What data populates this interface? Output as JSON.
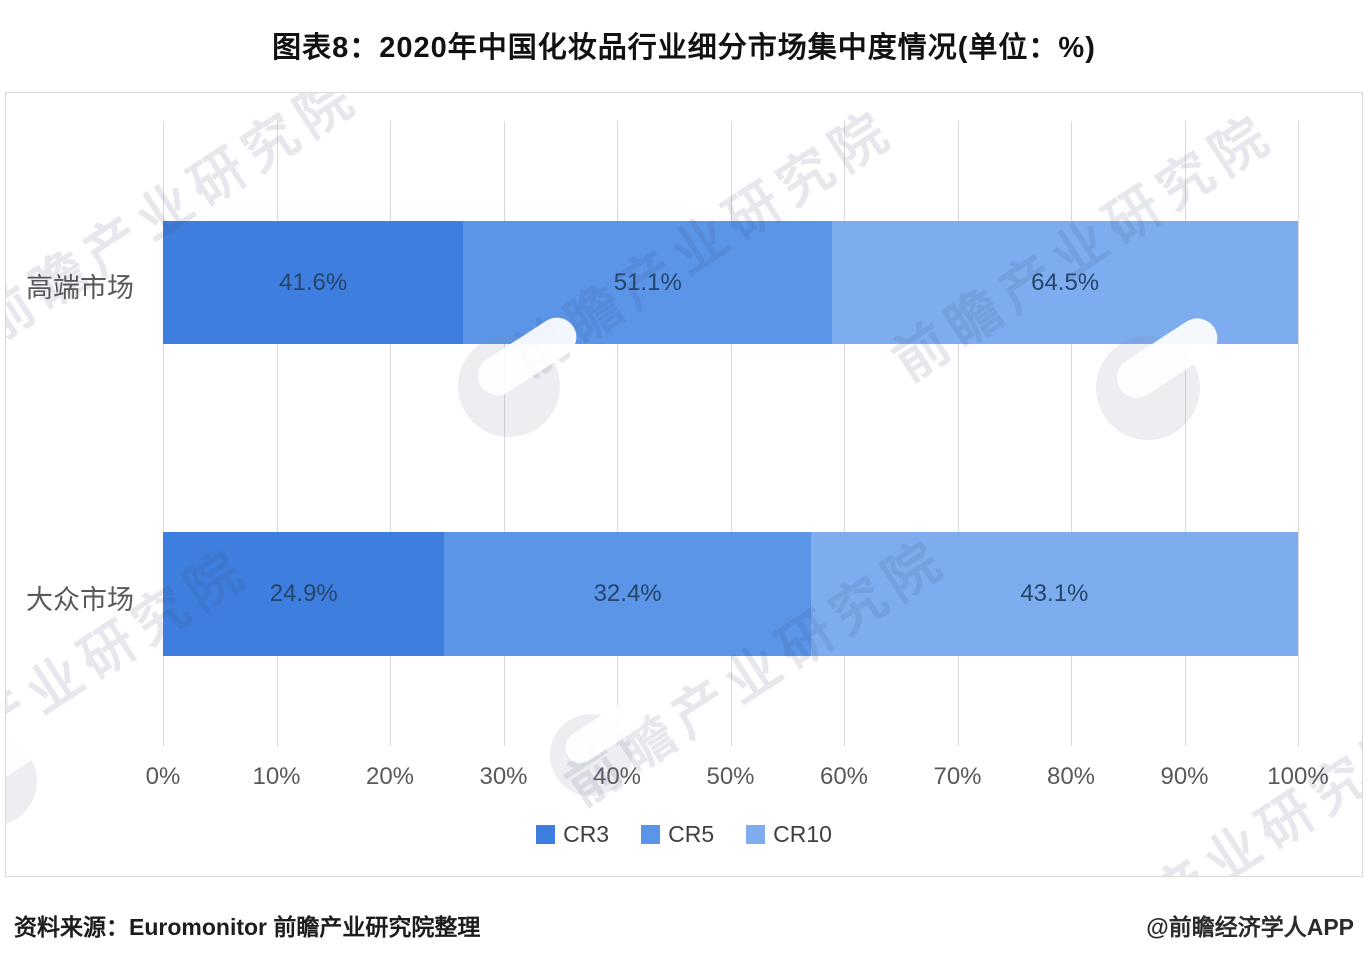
{
  "title": "图表8：2020年中国化妆品行业细分市场集中度情况(单位：%)",
  "watermark": {
    "text": "前瞻产业研究院"
  },
  "footer": {
    "source": "资料来源：Euromonitor 前瞻产业研究院整理",
    "credit": "@前瞻经济学人APP"
  },
  "colors": {
    "cr3": "#3E7EDE",
    "cr5": "#5A95E8",
    "cr10": "#7DADEF",
    "grid": "#d9d9d9",
    "data_label": "#25456B",
    "axis_text": "#595959"
  },
  "chart_data": {
    "type": "bar",
    "orientation": "horizontal",
    "stacking": "100%-normalized",
    "title": "图表8：2020年中国化妆品行业细分市场集中度情况(单位：%)",
    "categories": [
      "高端市场",
      "大众市场"
    ],
    "series": [
      {
        "name": "CR3",
        "color": "#3E7EDE",
        "values": [
          41.6,
          24.9
        ]
      },
      {
        "name": "CR5",
        "color": "#5A95E8",
        "values": [
          51.1,
          32.4
        ]
      },
      {
        "name": "CR10",
        "color": "#7DADEF",
        "values": [
          64.5,
          43.1
        ]
      }
    ],
    "value_suffix": "%",
    "x_ticks": [
      "0%",
      "10%",
      "20%",
      "30%",
      "40%",
      "50%",
      "60%",
      "70%",
      "80%",
      "90%",
      "100%"
    ],
    "xlim": [
      0,
      100
    ],
    "grid": true,
    "legend_position": "bottom"
  }
}
